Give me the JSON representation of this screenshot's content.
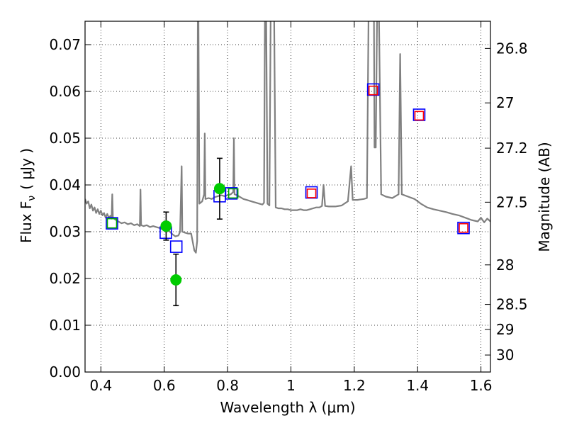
{
  "chart_data": {
    "type": "scatter",
    "title": "",
    "xlabel": "Wavelength  λ (μm)",
    "ylabel": "Flux  F",
    "ylabel_sub": "ν",
    "ylabel_unit": "( μJy )",
    "y2label": "Magnitude (AB)",
    "xlim": [
      0.35,
      1.63
    ],
    "ylim": [
      0.0,
      0.075
    ],
    "grid": true,
    "x_ticks": [
      {
        "value": 0.4,
        "label": "0.4"
      },
      {
        "value": 0.6,
        "label": "0.6"
      },
      {
        "value": 0.8,
        "label": "0.8"
      },
      {
        "value": 1.0,
        "label": "1"
      },
      {
        "value": 1.2,
        "label": "1.2"
      },
      {
        "value": 1.4,
        "label": "1.4"
      },
      {
        "value": 1.6,
        "label": "1.6"
      }
    ],
    "y_ticks": [
      {
        "value": 0.0,
        "label": "0.00"
      },
      {
        "value": 0.01,
        "label": "0.01"
      },
      {
        "value": 0.02,
        "label": "0.02"
      },
      {
        "value": 0.03,
        "label": "0.03"
      },
      {
        "value": 0.04,
        "label": "0.04"
      },
      {
        "value": 0.05,
        "label": "0.05"
      },
      {
        "value": 0.06,
        "label": "0.06"
      },
      {
        "value": 0.07,
        "label": "0.07"
      }
    ],
    "y2_ticks": [
      {
        "mag": 26.8,
        "label": "26.8"
      },
      {
        "mag": 27.0,
        "label": "27"
      },
      {
        "mag": 27.2,
        "label": "27.2"
      },
      {
        "mag": 27.5,
        "label": "27.5"
      },
      {
        "mag": 28.0,
        "label": "28"
      },
      {
        "mag": 28.5,
        "label": "28.5"
      },
      {
        "mag": 29.0,
        "label": "29"
      },
      {
        "mag": 30.0,
        "label": "30"
      }
    ],
    "series": [
      {
        "kind": "line",
        "color": "#808080",
        "points": [
          [
            0.35,
            0.037
          ],
          [
            0.355,
            0.036
          ],
          [
            0.36,
            0.0365
          ],
          [
            0.365,
            0.035
          ],
          [
            0.37,
            0.0358
          ],
          [
            0.375,
            0.0345
          ],
          [
            0.38,
            0.0352
          ],
          [
            0.385,
            0.034
          ],
          [
            0.39,
            0.0348
          ],
          [
            0.395,
            0.0338
          ],
          [
            0.4,
            0.0345
          ],
          [
            0.405,
            0.0335
          ],
          [
            0.41,
            0.034
          ],
          [
            0.415,
            0.033
          ],
          [
            0.42,
            0.0338
          ],
          [
            0.425,
            0.033
          ],
          [
            0.43,
            0.0334
          ],
          [
            0.434,
            0.0328
          ],
          [
            0.436,
            0.038
          ],
          [
            0.438,
            0.033
          ],
          [
            0.445,
            0.0326
          ],
          [
            0.455,
            0.0322
          ],
          [
            0.465,
            0.0318
          ],
          [
            0.475,
            0.032
          ],
          [
            0.485,
            0.0316
          ],
          [
            0.495,
            0.0318
          ],
          [
            0.505,
            0.0314
          ],
          [
            0.515,
            0.0316
          ],
          [
            0.523,
            0.0312
          ],
          [
            0.525,
            0.039
          ],
          [
            0.527,
            0.0314
          ],
          [
            0.535,
            0.0312
          ],
          [
            0.545,
            0.0314
          ],
          [
            0.555,
            0.031
          ],
          [
            0.565,
            0.0312
          ],
          [
            0.575,
            0.031
          ],
          [
            0.585,
            0.0308
          ],
          [
            0.595,
            0.0305
          ],
          [
            0.605,
            0.03
          ],
          [
            0.615,
            0.0302
          ],
          [
            0.625,
            0.0295
          ],
          [
            0.635,
            0.029
          ],
          [
            0.645,
            0.0292
          ],
          [
            0.65,
            0.03
          ],
          [
            0.655,
            0.044
          ],
          [
            0.657,
            0.03
          ],
          [
            0.665,
            0.0298
          ],
          [
            0.675,
            0.0296
          ],
          [
            0.685,
            0.0296
          ],
          [
            0.695,
            0.026
          ],
          [
            0.7,
            0.0255
          ],
          [
            0.704,
            0.028
          ],
          [
            0.706,
            0.076
          ],
          [
            0.708,
            0.076
          ],
          [
            0.711,
            0.036
          ],
          [
            0.72,
            0.0365
          ],
          [
            0.726,
            0.038
          ],
          [
            0.728,
            0.051
          ],
          [
            0.73,
            0.037
          ],
          [
            0.74,
            0.0372
          ],
          [
            0.75,
            0.037
          ],
          [
            0.76,
            0.0374
          ],
          [
            0.77,
            0.0376
          ],
          [
            0.78,
            0.0378
          ],
          [
            0.79,
            0.0376
          ],
          [
            0.8,
            0.0378
          ],
          [
            0.81,
            0.038
          ],
          [
            0.818,
            0.0385
          ],
          [
            0.82,
            0.05
          ],
          [
            0.822,
            0.038
          ],
          [
            0.83,
            0.0378
          ],
          [
            0.84,
            0.0374
          ],
          [
            0.85,
            0.037
          ],
          [
            0.86,
            0.0368
          ],
          [
            0.87,
            0.0366
          ],
          [
            0.88,
            0.0364
          ],
          [
            0.89,
            0.0362
          ],
          [
            0.9,
            0.036
          ],
          [
            0.91,
            0.0358
          ],
          [
            0.915,
            0.0362
          ],
          [
            0.918,
            0.076
          ],
          [
            0.922,
            0.076
          ],
          [
            0.926,
            0.036
          ],
          [
            0.932,
            0.0356
          ],
          [
            0.936,
            0.076
          ],
          [
            0.94,
            0.076
          ],
          [
            0.943,
            0.076
          ],
          [
            0.947,
            0.076
          ],
          [
            0.952,
            0.0352
          ],
          [
            0.96,
            0.035
          ],
          [
            0.97,
            0.035
          ],
          [
            0.98,
            0.0348
          ],
          [
            0.99,
            0.0348
          ],
          [
            1.0,
            0.0346
          ],
          [
            1.01,
            0.0346
          ],
          [
            1.02,
            0.0346
          ],
          [
            1.03,
            0.0348
          ],
          [
            1.04,
            0.0346
          ],
          [
            1.05,
            0.0346
          ],
          [
            1.06,
            0.0348
          ],
          [
            1.07,
            0.035
          ],
          [
            1.08,
            0.0352
          ],
          [
            1.09,
            0.0352
          ],
          [
            1.098,
            0.0355
          ],
          [
            1.103,
            0.04
          ],
          [
            1.108,
            0.0355
          ],
          [
            1.12,
            0.0354
          ],
          [
            1.14,
            0.0354
          ],
          [
            1.16,
            0.0356
          ],
          [
            1.18,
            0.0365
          ],
          [
            1.19,
            0.044
          ],
          [
            1.195,
            0.0368
          ],
          [
            1.21,
            0.0368
          ],
          [
            1.23,
            0.037
          ],
          [
            1.24,
            0.0372
          ],
          [
            1.245,
            0.076
          ],
          [
            1.262,
            0.076
          ],
          [
            1.264,
            0.048
          ],
          [
            1.268,
            0.048
          ],
          [
            1.272,
            0.076
          ],
          [
            1.278,
            0.076
          ],
          [
            1.285,
            0.038
          ],
          [
            1.3,
            0.0375
          ],
          [
            1.32,
            0.0372
          ],
          [
            1.34,
            0.038
          ],
          [
            1.345,
            0.068
          ],
          [
            1.35,
            0.038
          ],
          [
            1.37,
            0.0375
          ],
          [
            1.39,
            0.037
          ],
          [
            1.41,
            0.036
          ],
          [
            1.43,
            0.0352
          ],
          [
            1.45,
            0.0348
          ],
          [
            1.47,
            0.0345
          ],
          [
            1.49,
            0.0342
          ],
          [
            1.51,
            0.0338
          ],
          [
            1.53,
            0.0335
          ],
          [
            1.55,
            0.033
          ],
          [
            1.57,
            0.0325
          ],
          [
            1.59,
            0.0322
          ],
          [
            1.6,
            0.033
          ],
          [
            1.61,
            0.032
          ],
          [
            1.62,
            0.0328
          ],
          [
            1.63,
            0.0322
          ]
        ]
      },
      {
        "kind": "square",
        "stroke": "#0000ff",
        "points": [
          [
            0.435,
            0.0318
          ],
          [
            0.605,
            0.0298
          ],
          [
            0.638,
            0.0268
          ],
          [
            0.775,
            0.0376
          ],
          [
            0.812,
            0.0382
          ],
          [
            1.065,
            0.0384
          ],
          [
            1.26,
            0.0604
          ],
          [
            1.405,
            0.055
          ],
          [
            1.545,
            0.0308
          ]
        ]
      },
      {
        "kind": "square",
        "stroke": "#ff0000",
        "points": [
          [
            1.065,
            0.0382
          ],
          [
            1.26,
            0.0602
          ],
          [
            1.405,
            0.0548
          ],
          [
            1.545,
            0.0308
          ]
        ]
      },
      {
        "kind": "square",
        "stroke": "#00aa00",
        "points": [
          [
            0.435,
            0.0318
          ],
          [
            0.818,
            0.0382
          ]
        ]
      },
      {
        "kind": "errorbar",
        "color": "#00cc00",
        "points": [
          {
            "x": 0.606,
            "y": 0.0312,
            "yerr": 0.003
          },
          {
            "x": 0.637,
            "y": 0.0197,
            "yerr": 0.0055
          },
          {
            "x": 0.775,
            "y": 0.0392,
            "yerr": 0.0065
          }
        ]
      }
    ]
  }
}
